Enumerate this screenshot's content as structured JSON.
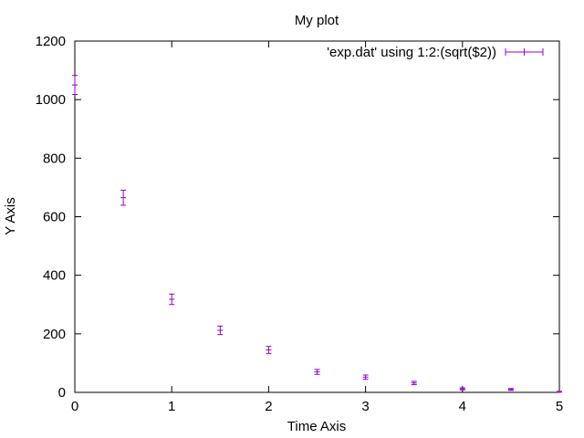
{
  "chart_data": {
    "type": "scatter",
    "title": "My plot",
    "xlabel": "Time Axis",
    "ylabel": "Y Axis",
    "xlim": [
      0,
      5
    ],
    "ylim": [
      0,
      1200
    ],
    "xticks": [
      "0",
      "1",
      "2",
      "3",
      "4",
      "5"
    ],
    "yticks": [
      "0",
      "200",
      "400",
      "600",
      "800",
      "1000",
      "1200"
    ],
    "grid": false,
    "legend_position": "top-right",
    "series": [
      {
        "name": "'exp.dat' using 1:2:(sqrt($2))",
        "color": "#9400d3",
        "x": [
          0,
          0.5,
          1,
          1.5,
          2,
          2.5,
          3,
          3.5,
          4,
          4.5,
          5
        ],
        "y": [
          1050,
          665,
          318,
          212,
          145,
          70,
          52,
          32,
          12,
          10,
          2
        ],
        "err": [
          32.4,
          25.8,
          17.8,
          14.6,
          12.0,
          8.4,
          7.2,
          5.7,
          3.5,
          3.2,
          1.4
        ]
      }
    ]
  }
}
